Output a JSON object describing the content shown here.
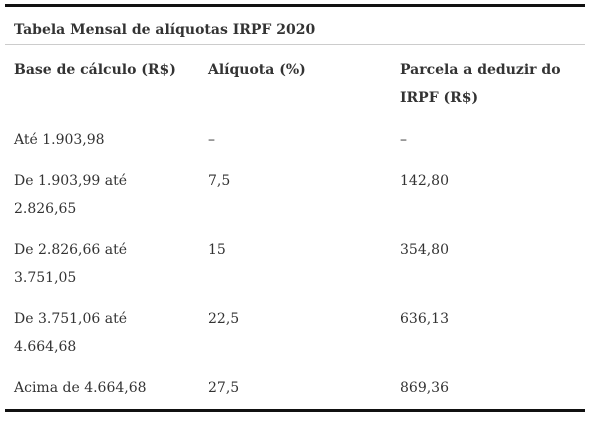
{
  "table": {
    "title": "Tabela Mensal de alíquotas IRPF 2020",
    "header": [
      "Base de cálculo (R$)",
      "Alíquota (%)",
      "Parcela a deduzir do IRPF (R$)"
    ],
    "rows": [
      [
        "Até 1.903,98",
        "–",
        "–"
      ],
      [
        "De 1.903,99 até 2.826,65",
        "7,5",
        "142,80"
      ],
      [
        "De 2.826,66 até 3.751,05",
        "15",
        "354,80"
      ],
      [
        "De 3.751,06 até 4.664,68",
        "22,5",
        "636,13"
      ],
      [
        "Acima de 4.664,68",
        "27,5",
        "869,36"
      ]
    ]
  }
}
